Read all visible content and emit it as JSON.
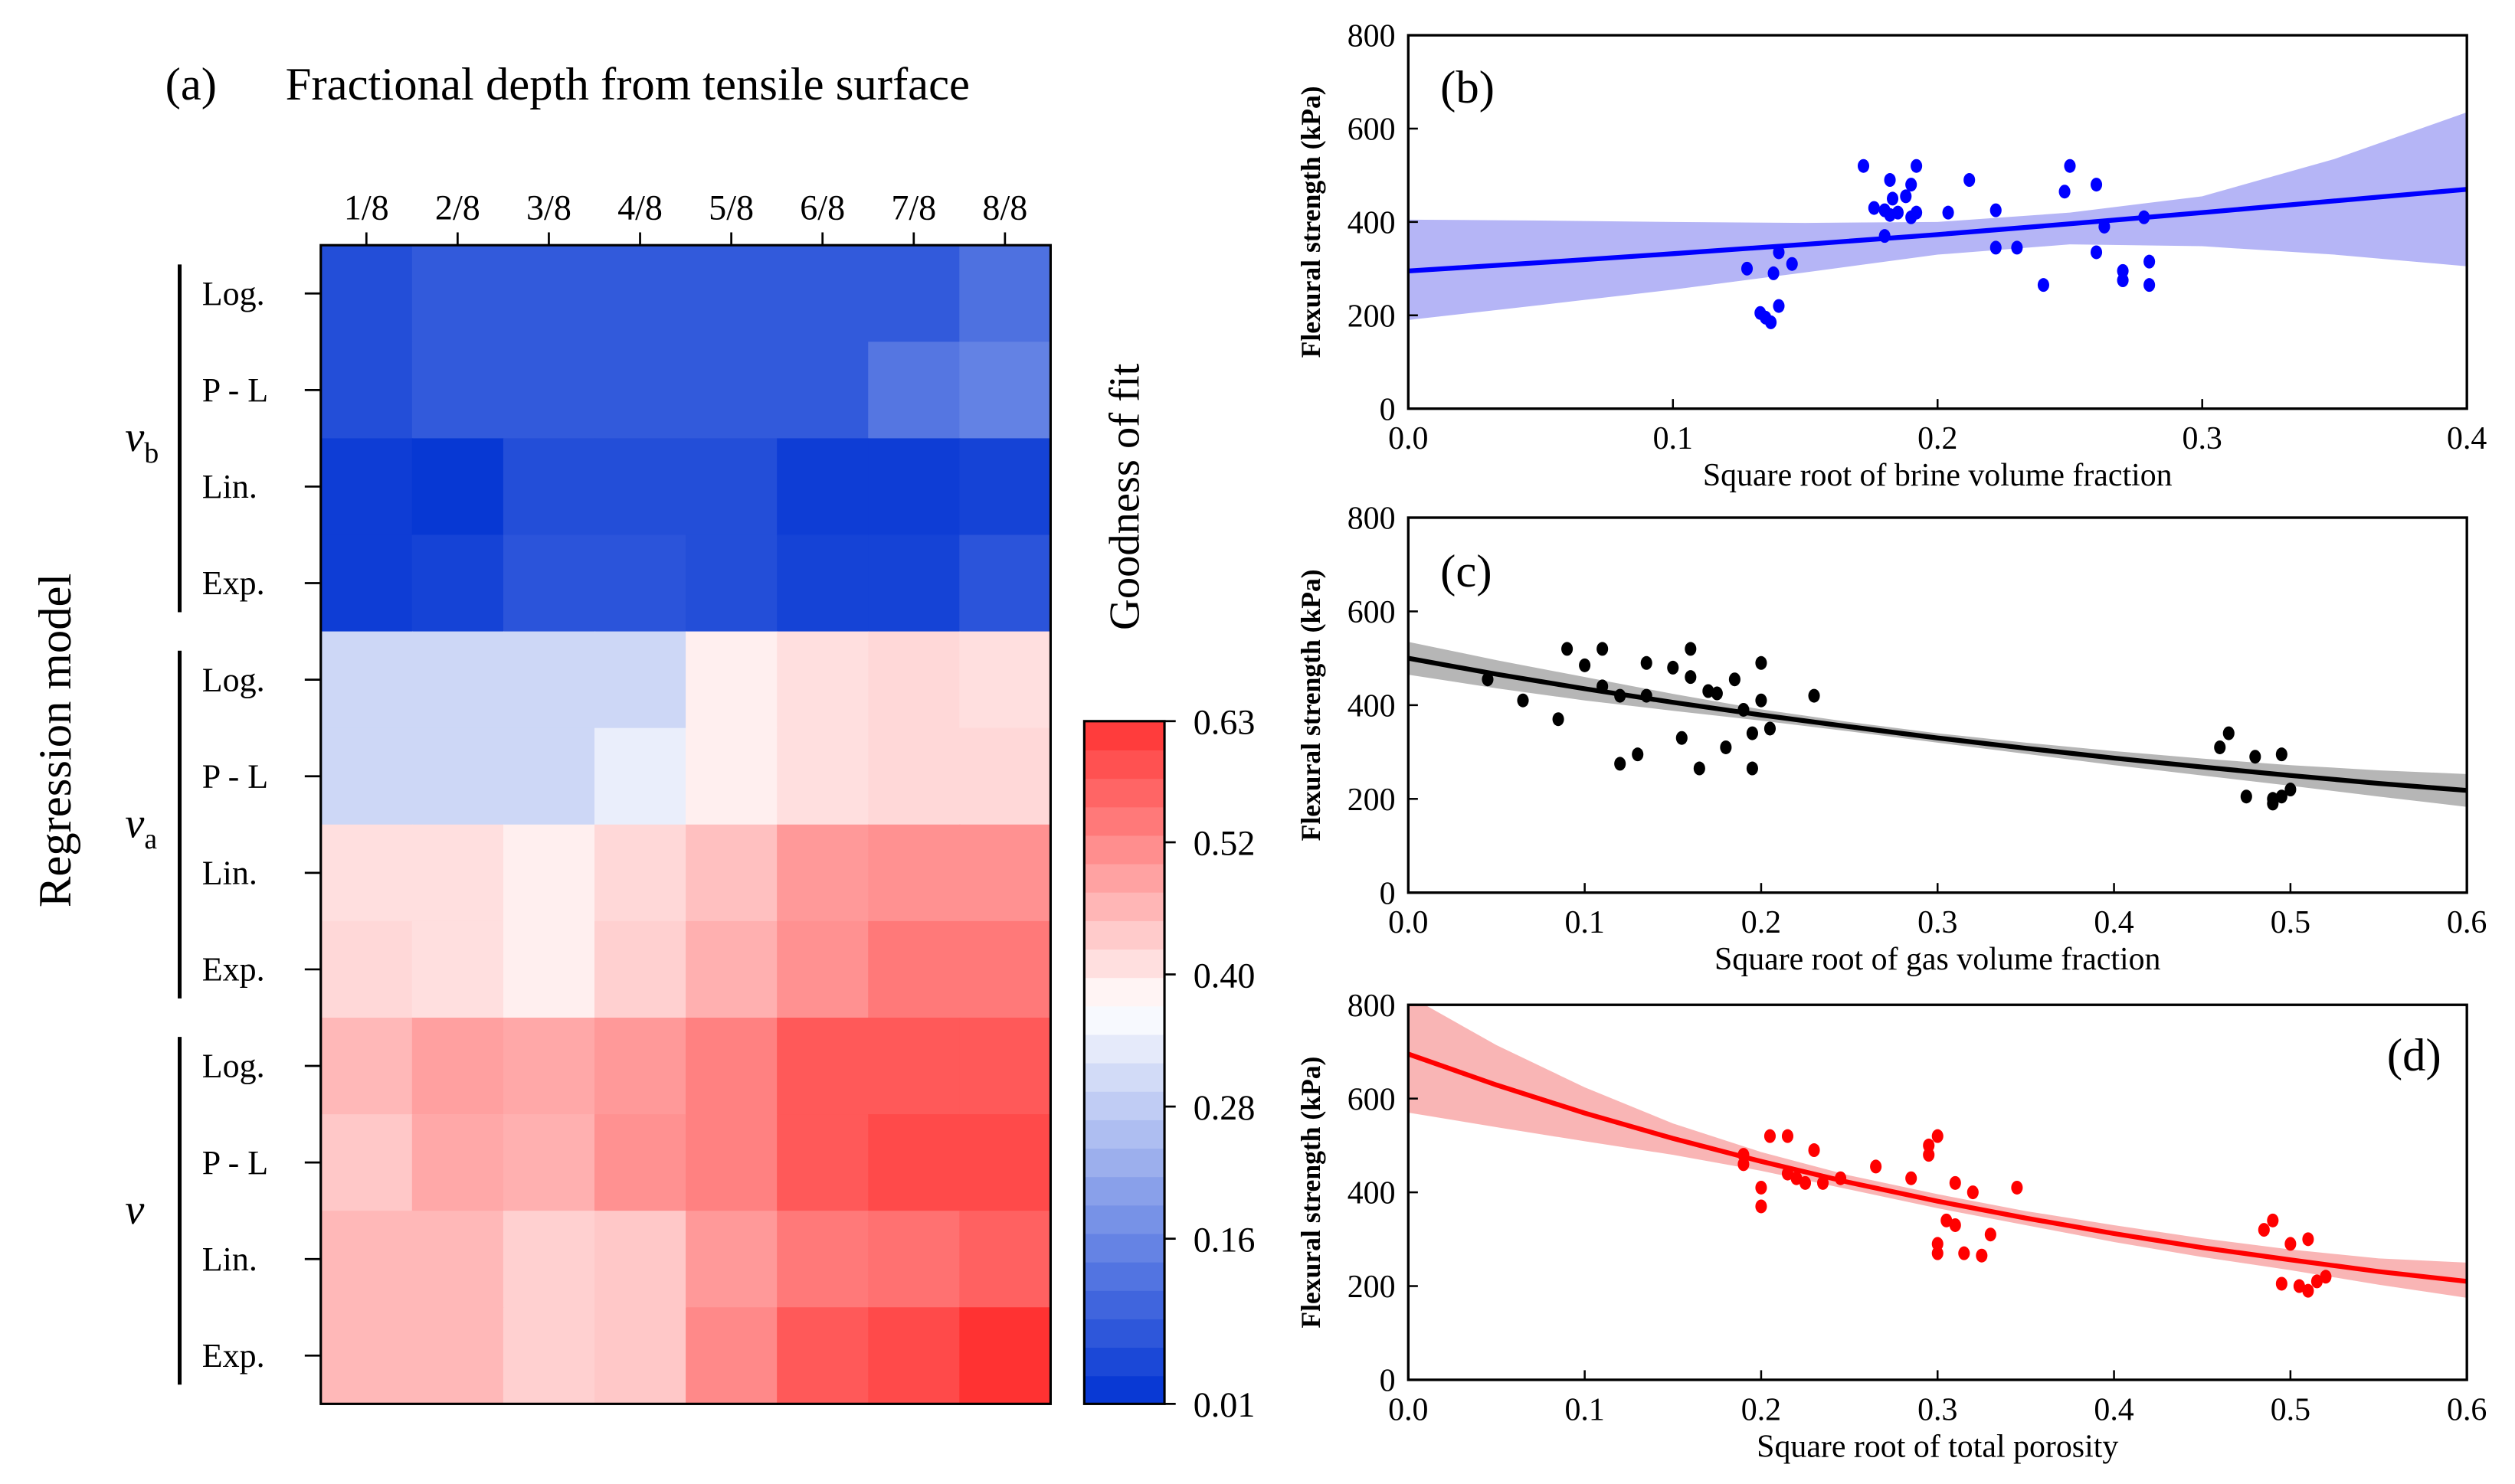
{
  "chart_data": [
    {
      "type": "heatmap",
      "panel_label": "(a)",
      "title": "Fractional depth from tensile surface",
      "ylabel": "Regression model",
      "columns": [
        "1/8",
        "2/8",
        "3/8",
        "4/8",
        "5/8",
        "6/8",
        "7/8",
        "8/8"
      ],
      "groups": [
        {
          "name": "v",
          "sub": "b",
          "rows": [
            "Log.",
            "P - L",
            "Lin.",
            "Exp."
          ]
        },
        {
          "name": "v",
          "sub": "a",
          "rows": [
            "Log.",
            "P - L",
            "Lin.",
            "Exp."
          ]
        },
        {
          "name": "v",
          "sub": "",
          "rows": [
            "Log.",
            "P - L",
            "Lin.",
            "Exp."
          ]
        }
      ],
      "values": [
        [
          0.06,
          0.08,
          0.08,
          0.08,
          0.08,
          0.08,
          0.08,
          0.12
        ],
        [
          0.06,
          0.08,
          0.08,
          0.08,
          0.08,
          0.08,
          0.13,
          0.15
        ],
        [
          0.03,
          0.02,
          0.06,
          0.06,
          0.06,
          0.03,
          0.03,
          0.04
        ],
        [
          0.03,
          0.04,
          0.07,
          0.07,
          0.06,
          0.04,
          0.04,
          0.07
        ],
        [
          0.3,
          0.3,
          0.3,
          0.3,
          0.39,
          0.41,
          0.42,
          0.41
        ],
        [
          0.3,
          0.3,
          0.3,
          0.34,
          0.39,
          0.41,
          0.42,
          0.42
        ],
        [
          0.41,
          0.41,
          0.39,
          0.42,
          0.45,
          0.5,
          0.51,
          0.51
        ],
        [
          0.42,
          0.41,
          0.39,
          0.43,
          0.47,
          0.51,
          0.54,
          0.54
        ],
        [
          0.46,
          0.49,
          0.48,
          0.5,
          0.53,
          0.58,
          0.58,
          0.58
        ],
        [
          0.44,
          0.48,
          0.47,
          0.51,
          0.53,
          0.58,
          0.6,
          0.6
        ],
        [
          0.46,
          0.46,
          0.43,
          0.44,
          0.5,
          0.54,
          0.55,
          0.57
        ],
        [
          0.46,
          0.46,
          0.43,
          0.44,
          0.52,
          0.58,
          0.6,
          0.63
        ]
      ],
      "colorbar": {
        "label": "Goodness of fit",
        "range": [
          0.01,
          0.63
        ],
        "ticks": [
          "0.63",
          "0.52",
          "0.40",
          "0.28",
          "0.16",
          "0.01"
        ],
        "tick_values": [
          0.63,
          0.52,
          0.4,
          0.28,
          0.16,
          0.01
        ],
        "low_color": "#0032d2",
        "mid_color": "#ffffff",
        "high_color": "#ff3232",
        "mid_value": 0.37
      }
    },
    {
      "type": "scatter",
      "panel_label": "(b)",
      "xlabel": "Square root of brine volume fraction",
      "ylabel": "Flexural strength (kPa)",
      "xlim": [
        0,
        0.4
      ],
      "ylim": [
        0,
        800
      ],
      "xticks": [
        "0.0",
        "0.1",
        "0.2",
        "0.3",
        "0.4"
      ],
      "xtick_values": [
        0,
        0.1,
        0.2,
        0.3,
        0.4
      ],
      "yticks": [
        "0",
        "200",
        "400",
        "600",
        "800"
      ],
      "ytick_values": [
        0,
        200,
        400,
        600,
        800
      ],
      "color": "#0000ff",
      "band_color": "#a8a8f5",
      "points": [
        [
          0.128,
          300
        ],
        [
          0.133,
          205
        ],
        [
          0.135,
          195
        ],
        [
          0.137,
          185
        ],
        [
          0.14,
          220
        ],
        [
          0.138,
          290
        ],
        [
          0.14,
          335
        ],
        [
          0.145,
          310
        ],
        [
          0.172,
          520
        ],
        [
          0.176,
          430
        ],
        [
          0.18,
          425
        ],
        [
          0.182,
          415
        ],
        [
          0.182,
          490
        ],
        [
          0.183,
          450
        ],
        [
          0.18,
          370
        ],
        [
          0.185,
          420
        ],
        [
          0.188,
          455
        ],
        [
          0.19,
          410
        ],
        [
          0.19,
          480
        ],
        [
          0.192,
          520
        ],
        [
          0.192,
          420
        ],
        [
          0.204,
          420
        ],
        [
          0.212,
          490
        ],
        [
          0.222,
          425
        ],
        [
          0.222,
          345
        ],
        [
          0.23,
          345
        ],
        [
          0.24,
          265
        ],
        [
          0.248,
          465
        ],
        [
          0.25,
          520
        ],
        [
          0.26,
          480
        ],
        [
          0.26,
          335
        ],
        [
          0.263,
          390
        ],
        [
          0.27,
          295
        ],
        [
          0.27,
          275
        ],
        [
          0.278,
          410
        ],
        [
          0.28,
          315
        ],
        [
          0.28,
          265
        ]
      ],
      "fit": {
        "x": [
          0,
          0.05,
          0.1,
          0.15,
          0.2,
          0.25,
          0.3,
          0.35,
          0.4
        ],
        "y": [
          295,
          313,
          332,
          352,
          373,
          396,
          420,
          445,
          470
        ],
        "lo": [
          190,
          222,
          255,
          292,
          330,
          352,
          348,
          330,
          305
        ],
        "hi": [
          405,
          403,
          400,
          398,
          400,
          420,
          455,
          535,
          635
        ]
      }
    },
    {
      "type": "scatter",
      "panel_label": "(c)",
      "xlabel": "Square root of gas volume fraction",
      "ylabel": "Flexural strength (kPa)",
      "xlim": [
        0,
        0.6
      ],
      "ylim": [
        0,
        800
      ],
      "xticks": [
        "0.0",
        "0.1",
        "0.2",
        "0.3",
        "0.4",
        "0.5",
        "0.6"
      ],
      "xtick_values": [
        0,
        0.1,
        0.2,
        0.3,
        0.4,
        0.5,
        0.6
      ],
      "yticks": [
        "0",
        "200",
        "400",
        "600",
        "800"
      ],
      "ytick_values": [
        0,
        200,
        400,
        600,
        800
      ],
      "color": "#000000",
      "band_color": "#a9a9a9",
      "points": [
        [
          0.045,
          455
        ],
        [
          0.065,
          410
        ],
        [
          0.085,
          370
        ],
        [
          0.09,
          520
        ],
        [
          0.1,
          485
        ],
        [
          0.11,
          520
        ],
        [
          0.11,
          440
        ],
        [
          0.12,
          420
        ],
        [
          0.12,
          275
        ],
        [
          0.13,
          295
        ],
        [
          0.135,
          490
        ],
        [
          0.135,
          420
        ],
        [
          0.15,
          480
        ],
        [
          0.155,
          330
        ],
        [
          0.16,
          520
        ],
        [
          0.16,
          460
        ],
        [
          0.165,
          265
        ],
        [
          0.17,
          430
        ],
        [
          0.175,
          425
        ],
        [
          0.18,
          310
        ],
        [
          0.185,
          455
        ],
        [
          0.19,
          390
        ],
        [
          0.195,
          265
        ],
        [
          0.195,
          340
        ],
        [
          0.2,
          410
        ],
        [
          0.2,
          490
        ],
        [
          0.205,
          350
        ],
        [
          0.23,
          420
        ],
        [
          0.46,
          310
        ],
        [
          0.465,
          340
        ],
        [
          0.475,
          205
        ],
        [
          0.48,
          290
        ],
        [
          0.49,
          200
        ],
        [
          0.49,
          190
        ],
        [
          0.495,
          295
        ],
        [
          0.495,
          205
        ],
        [
          0.5,
          220
        ]
      ],
      "fit": {
        "x": [
          0,
          0.05,
          0.1,
          0.15,
          0.2,
          0.25,
          0.3,
          0.35,
          0.4,
          0.45,
          0.5,
          0.55,
          0.6
        ],
        "y": [
          500,
          466,
          435,
          406,
          379,
          354,
          330,
          308,
          287,
          268,
          250,
          233,
          218
        ],
        "lo": [
          465,
          436,
          410,
          388,
          367,
          344,
          320,
          296,
          272,
          250,
          228,
          205,
          183
        ],
        "hi": [
          535,
          496,
          460,
          424,
          391,
          364,
          340,
          320,
          302,
          286,
          272,
          261,
          253
        ]
      }
    },
    {
      "type": "scatter",
      "panel_label": "(d)",
      "xlabel": "Square root of total porosity",
      "ylabel": "Flexural strength (kPa)",
      "xlim": [
        0,
        0.6
      ],
      "ylim": [
        0,
        800
      ],
      "xticks": [
        "0.0",
        "0.1",
        "0.2",
        "0.3",
        "0.4",
        "0.5",
        "0.6"
      ],
      "xtick_values": [
        0,
        0.1,
        0.2,
        0.3,
        0.4,
        0.5,
        0.6
      ],
      "yticks": [
        "0",
        "200",
        "400",
        "600",
        "800"
      ],
      "ytick_values": [
        0,
        200,
        400,
        600,
        800
      ],
      "color": "#ff0000",
      "band_color": "#f8a8a8",
      "points": [
        [
          0.19,
          460
        ],
        [
          0.19,
          480
        ],
        [
          0.2,
          370
        ],
        [
          0.2,
          410
        ],
        [
          0.205,
          520
        ],
        [
          0.215,
          520
        ],
        [
          0.215,
          440
        ],
        [
          0.22,
          430
        ],
        [
          0.225,
          420
        ],
        [
          0.23,
          490
        ],
        [
          0.235,
          420
        ],
        [
          0.245,
          430
        ],
        [
          0.265,
          455
        ],
        [
          0.285,
          430
        ],
        [
          0.295,
          480
        ],
        [
          0.295,
          500
        ],
        [
          0.3,
          520
        ],
        [
          0.3,
          290
        ],
        [
          0.3,
          270
        ],
        [
          0.305,
          340
        ],
        [
          0.31,
          330
        ],
        [
          0.31,
          420
        ],
        [
          0.315,
          270
        ],
        [
          0.32,
          400
        ],
        [
          0.325,
          265
        ],
        [
          0.33,
          310
        ],
        [
          0.345,
          410
        ],
        [
          0.485,
          320
        ],
        [
          0.49,
          340
        ],
        [
          0.495,
          205
        ],
        [
          0.5,
          290
        ],
        [
          0.505,
          200
        ],
        [
          0.51,
          190
        ],
        [
          0.51,
          300
        ],
        [
          0.515,
          210
        ],
        [
          0.52,
          220
        ]
      ],
      "fit": {
        "x": [
          0,
          0.05,
          0.1,
          0.15,
          0.2,
          0.25,
          0.3,
          0.35,
          0.4,
          0.45,
          0.5,
          0.55,
          0.6
        ],
        "y": [
          695,
          629,
          569,
          515,
          466,
          421,
          381,
          345,
          312,
          282,
          256,
          231,
          210
        ],
        "lo": [
          570,
          539,
          509,
          480,
          446,
          406,
          366,
          330,
          294,
          262,
          234,
          203,
          175
        ],
        "hi": [
          820,
          714,
          624,
          547,
          486,
          436,
          396,
          360,
          330,
          302,
          278,
          259,
          250
        ]
      }
    }
  ]
}
